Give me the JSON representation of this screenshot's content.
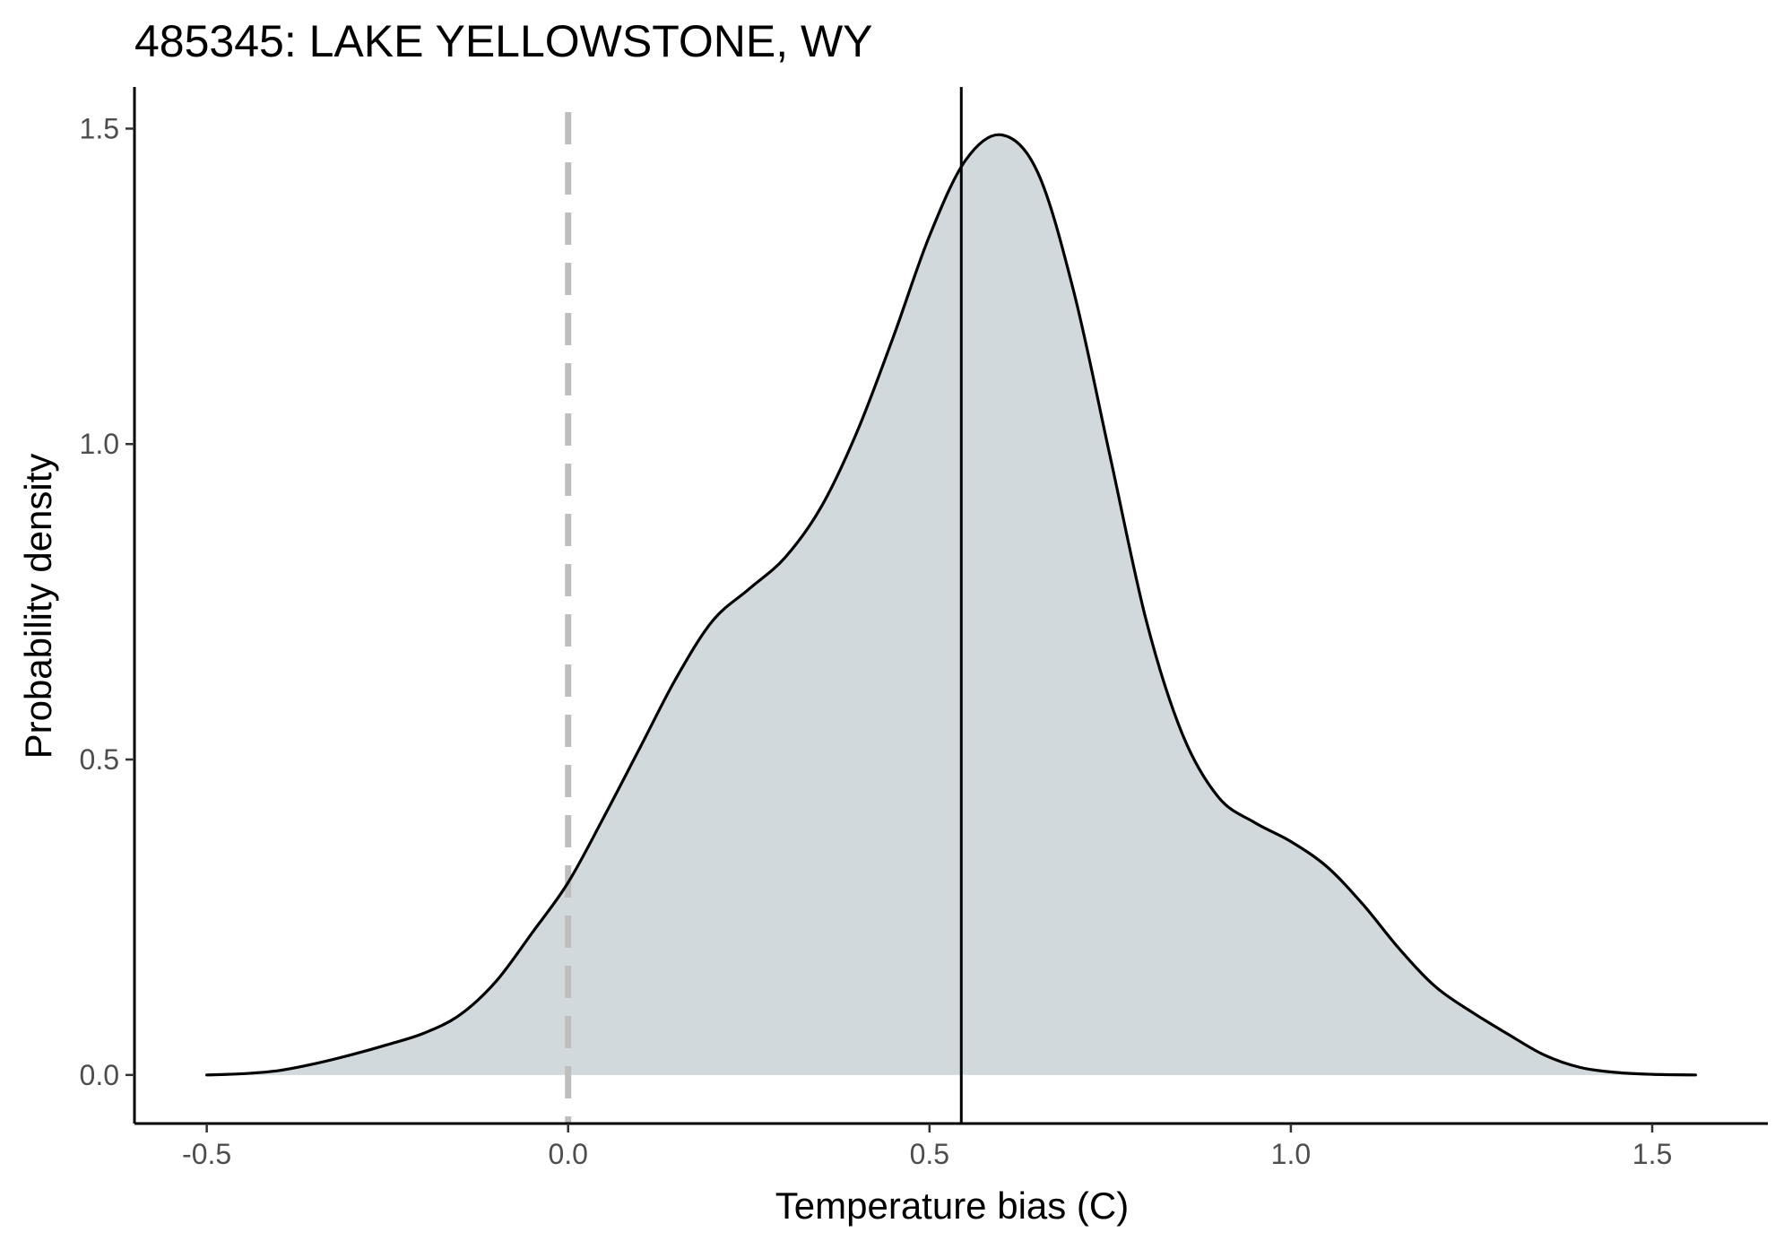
{
  "chart_data": {
    "type": "area",
    "title": "485345: LAKE YELLOWSTONE, WY",
    "xlabel": "Temperature bias (C)",
    "ylabel": "Probability density",
    "xlim": [
      -0.6,
      1.66
    ],
    "ylim": [
      -0.077,
      1.566
    ],
    "x_ticks": [
      -0.5,
      0.0,
      0.5,
      1.0,
      1.5
    ],
    "x_tick_labels": [
      "-0.5",
      "0.0",
      "0.5",
      "1.0",
      "1.5"
    ],
    "y_ticks": [
      0.0,
      0.5,
      1.0,
      1.5
    ],
    "y_tick_labels": [
      "0.0",
      "0.5",
      "1.0",
      "1.5"
    ],
    "grid": false,
    "legend": "none",
    "reference_lines": {
      "zero_line": {
        "x": 0.0,
        "style": "dashed",
        "color": "#bebebe"
      },
      "mean_line": {
        "x": 0.544,
        "style": "solid",
        "color": "#000000"
      }
    },
    "fill_color": "#d1d9dc",
    "line_color": "#000000",
    "density": {
      "x": [
        -0.5,
        -0.45,
        -0.4,
        -0.35,
        -0.3,
        -0.25,
        -0.2,
        -0.15,
        -0.1,
        -0.05,
        0.0,
        0.05,
        0.1,
        0.15,
        0.2,
        0.25,
        0.3,
        0.35,
        0.4,
        0.45,
        0.5,
        0.55,
        0.6,
        0.65,
        0.7,
        0.75,
        0.8,
        0.85,
        0.9,
        0.95,
        1.0,
        1.05,
        1.1,
        1.15,
        1.2,
        1.25,
        1.3,
        1.35,
        1.4,
        1.45,
        1.5,
        1.56
      ],
      "y": [
        0.0,
        0.002,
        0.007,
        0.018,
        0.032,
        0.048,
        0.066,
        0.095,
        0.148,
        0.225,
        0.305,
        0.41,
        0.52,
        0.63,
        0.72,
        0.77,
        0.82,
        0.9,
        1.02,
        1.17,
        1.33,
        1.45,
        1.49,
        1.43,
        1.24,
        0.98,
        0.72,
        0.54,
        0.44,
        0.4,
        0.37,
        0.33,
        0.27,
        0.2,
        0.14,
        0.1,
        0.065,
        0.032,
        0.012,
        0.004,
        0.001,
        0.0
      ]
    }
  }
}
